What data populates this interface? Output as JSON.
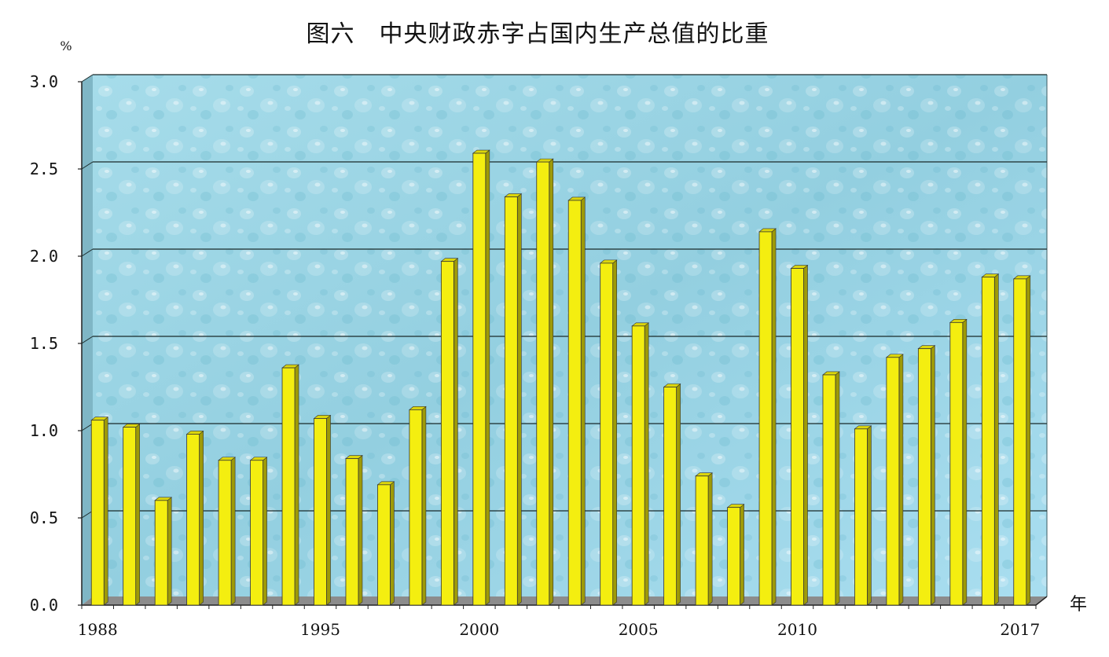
{
  "chart_data": {
    "type": "bar",
    "title": "图六　中央财政赤字占国内生产总值的比重",
    "y_unit": "%",
    "x_unit": "年",
    "ylim": [
      0,
      3.0
    ],
    "yticks": [
      "0.0",
      "0.5",
      "1.0",
      "1.5",
      "2.0",
      "2.5",
      "3.0"
    ],
    "x_tick_labels": [
      "1988",
      "1995",
      "2000",
      "2005",
      "2010",
      "2017"
    ],
    "grid": true,
    "legend": "none",
    "categories": [
      "1988",
      "1989",
      "1990",
      "1991",
      "1992",
      "1993",
      "1994",
      "1995",
      "1996",
      "1997",
      "1998",
      "1999",
      "2000",
      "2001",
      "2002",
      "2003",
      "2004",
      "2005",
      "2006",
      "2007",
      "2008",
      "2009",
      "2010",
      "2011",
      "2012",
      "2013",
      "2014",
      "2015",
      "2016",
      "2017"
    ],
    "values": [
      1.06,
      1.02,
      0.6,
      0.98,
      0.83,
      0.83,
      1.36,
      1.07,
      0.84,
      0.69,
      1.12,
      1.97,
      2.59,
      2.34,
      2.54,
      2.32,
      1.96,
      1.6,
      1.25,
      0.74,
      0.56,
      2.14,
      1.93,
      1.32,
      1.01,
      1.42,
      1.47,
      1.62,
      1.88,
      1.87
    ],
    "colors": {
      "bar_face": "#f4ee10",
      "bar_side": "#9e9a08",
      "bar_top": "#dcd60c",
      "plot_background": "#9fd7e6",
      "floor": "#8c8c8c",
      "gridline": "#1a2a2a"
    }
  }
}
